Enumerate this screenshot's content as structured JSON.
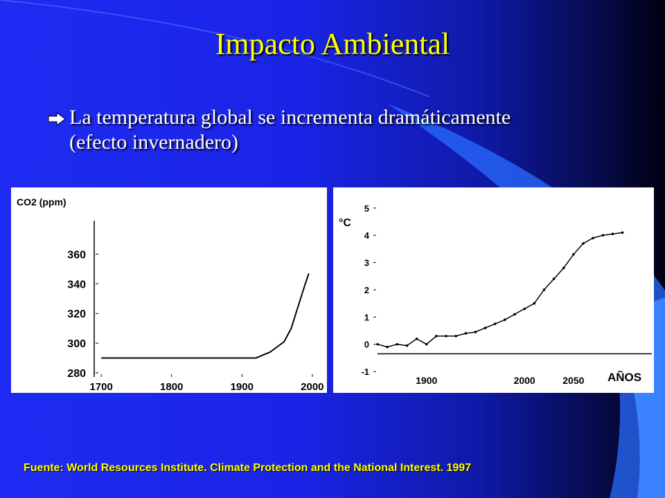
{
  "slide": {
    "title": "Impacto Ambiental",
    "bullet": "La temperatura global se incrementa dramáticamente (efecto invernadero)",
    "source": "Fuente: World Resources Institute. Climate Protection and the National Interest. 1997",
    "colors": {
      "title": "#ffff00",
      "background": "#1f2bf2",
      "bullet_text": "#ffffff",
      "source": "#ffff00"
    },
    "bullet_icon": "arrow-right-icon"
  },
  "chart_data": [
    {
      "type": "line",
      "title": "",
      "ylabel": "CO2 (ppm)",
      "xlabel": "",
      "x_ticks": [
        1700,
        1800,
        1900,
        2000
      ],
      "y_ticks": [
        280,
        300,
        320,
        340,
        360
      ],
      "xlim": [
        1690,
        2010
      ],
      "ylim": [
        280,
        370
      ],
      "grid": false,
      "series": [
        {
          "x": [
            1700,
            1750,
            1800,
            1850,
            1900,
            1910,
            1920,
            1940,
            1960,
            1970,
            1980,
            1990,
            1995
          ],
          "values": [
            290,
            290,
            290,
            290,
            290,
            290,
            290,
            294,
            301,
            310,
            325,
            340,
            347
          ]
        }
      ]
    },
    {
      "type": "line",
      "title": "",
      "ylabel": "°C",
      "xlabel": "AÑOS",
      "x_ticks": [
        1900,
        2000,
        2050
      ],
      "y_ticks": [
        -1,
        0,
        1,
        2,
        3,
        4,
        5
      ],
      "xlim": [
        1850,
        2130
      ],
      "ylim": [
        -1.2,
        5.3
      ],
      "grid": false,
      "series": [
        {
          "x": [
            1850,
            1860,
            1870,
            1880,
            1890,
            1900,
            1910,
            1920,
            1930,
            1940,
            1950,
            1960,
            1970,
            1980,
            1990,
            2000,
            2010,
            2020,
            2030,
            2040,
            2050,
            2060,
            2070,
            2080,
            2090,
            2100
          ],
          "values": [
            0.0,
            -0.1,
            0.0,
            -0.05,
            0.2,
            0.0,
            0.3,
            0.3,
            0.3,
            0.4,
            0.45,
            0.6,
            0.75,
            0.9,
            1.1,
            1.3,
            1.5,
            2.0,
            2.4,
            2.8,
            3.3,
            3.7,
            3.9,
            4.0,
            4.05,
            4.1
          ]
        }
      ]
    }
  ]
}
